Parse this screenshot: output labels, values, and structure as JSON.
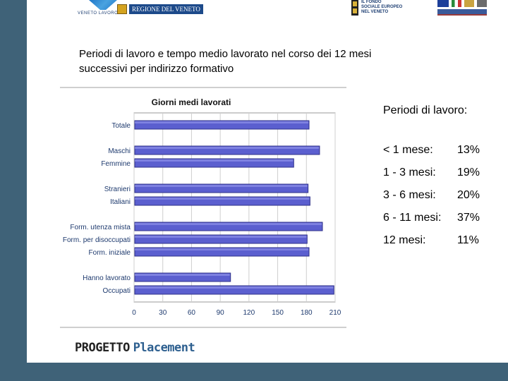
{
  "header": {
    "logo_left_text": "VENETO LAVORO",
    "logo_region_text": "REGIONE DEL VENETO",
    "logo_fse_lines": [
      "IL FONDO",
      "SOCIALE EUROPEO",
      "NEL VENETO"
    ]
  },
  "headline": {
    "line1": "Periodi di lavoro e tempo medio lavorato nel corso dei 12 mesi",
    "line2": "successivi per indirizzo formativo"
  },
  "chart_data": {
    "type": "bar",
    "orientation": "horizontal",
    "title": "Giorni medi lavorati",
    "categories": [
      "Totale",
      "Maschi",
      "Femmine",
      "Stranieri",
      "Italiani",
      "Form. utenza mista",
      "Form. per disoccupati",
      "Form. iniziale",
      "Hanno lavorato",
      "Occupati"
    ],
    "groups": [
      [
        0
      ],
      [
        1,
        2
      ],
      [
        3,
        4
      ],
      [
        5,
        6,
        7
      ],
      [
        8,
        9
      ]
    ],
    "values": [
      182,
      193,
      166,
      181,
      183,
      196,
      180,
      182,
      100,
      208
    ],
    "xlim": [
      0,
      210
    ],
    "xticks": [
      0,
      30,
      60,
      90,
      120,
      150,
      180,
      210
    ],
    "grid": true,
    "bar_color": "#5b5fcf"
  },
  "periods": {
    "heading": "Periodi di lavoro:",
    "rows": [
      {
        "label": "< 1 mese:",
        "value": "13%"
      },
      {
        "label": "1 - 3 mesi:",
        "value": "19%"
      },
      {
        "label": "3 - 6 mesi:",
        "value": "20%"
      },
      {
        "label": "6 - 11 mesi:",
        "value": "37%"
      },
      {
        "label": "12 mesi:",
        "value": "11%"
      }
    ]
  },
  "footer": {
    "word1": "PROGETTO",
    "word2": "Placement"
  }
}
